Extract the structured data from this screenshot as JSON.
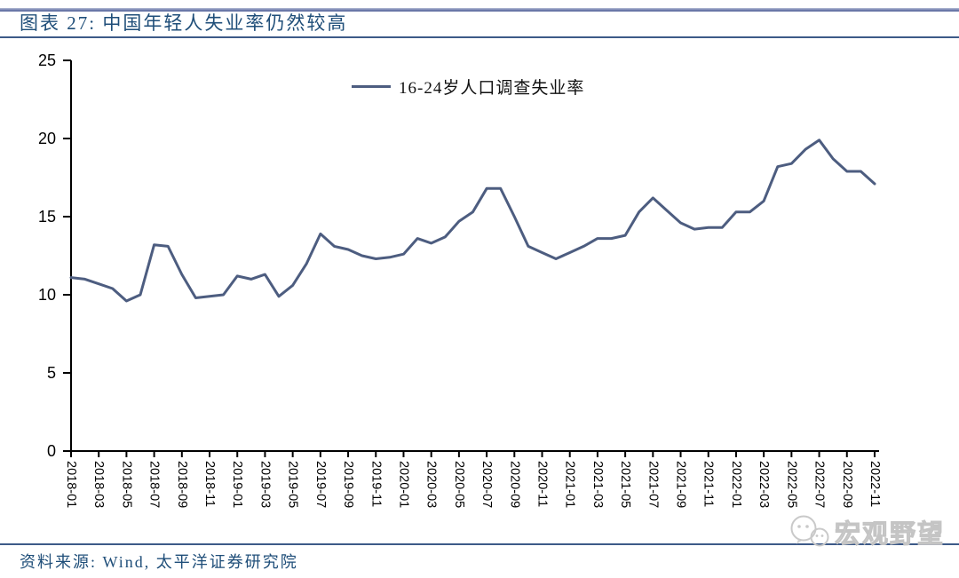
{
  "header": {
    "title": "图表 27: 中国年轻人失业率仍然较高"
  },
  "chart_data": {
    "type": "line",
    "title": "图表 27: 中国年轻人失业率仍然较高",
    "xlabel": "",
    "ylabel": "",
    "ylim": [
      0,
      25
    ],
    "yticks": [
      0,
      5,
      10,
      15,
      20,
      25
    ],
    "grid": false,
    "legend_position": "top-center",
    "x_tick_every": 2,
    "x": [
      "2018-01",
      "2018-02",
      "2018-03",
      "2018-04",
      "2018-05",
      "2018-06",
      "2018-07",
      "2018-08",
      "2018-09",
      "2018-10",
      "2018-11",
      "2018-12",
      "2019-01",
      "2019-02",
      "2019-03",
      "2019-04",
      "2019-05",
      "2019-06",
      "2019-07",
      "2019-08",
      "2019-09",
      "2019-10",
      "2019-11",
      "2019-12",
      "2020-01",
      "2020-02",
      "2020-03",
      "2020-04",
      "2020-05",
      "2020-06",
      "2020-07",
      "2020-08",
      "2020-09",
      "2020-10",
      "2020-11",
      "2020-12",
      "2021-01",
      "2021-02",
      "2021-03",
      "2021-04",
      "2021-05",
      "2021-06",
      "2021-07",
      "2021-08",
      "2021-09",
      "2021-10",
      "2021-11",
      "2021-12",
      "2022-01",
      "2022-02",
      "2022-03",
      "2022-04",
      "2022-05",
      "2022-06",
      "2022-07",
      "2022-08",
      "2022-09",
      "2022-10",
      "2022-11"
    ],
    "series": [
      {
        "name": "16-24岁人口调查失业率",
        "color": "#4D5D80",
        "values": [
          11.1,
          11.0,
          10.7,
          10.4,
          9.6,
          10.0,
          13.2,
          13.1,
          11.3,
          9.8,
          9.9,
          10.0,
          11.2,
          11.0,
          11.3,
          9.9,
          10.6,
          12.0,
          13.9,
          13.1,
          12.9,
          12.5,
          12.3,
          12.4,
          12.6,
          13.6,
          13.3,
          13.7,
          14.7,
          15.3,
          16.8,
          16.8,
          15.0,
          13.1,
          12.7,
          12.3,
          12.7,
          13.1,
          13.6,
          13.6,
          13.8,
          15.3,
          16.2,
          15.4,
          14.6,
          14.2,
          14.3,
          14.3,
          15.3,
          15.3,
          16.0,
          18.2,
          18.4,
          19.3,
          19.9,
          18.7,
          17.9,
          17.9,
          17.1
        ]
      }
    ]
  },
  "footer": {
    "source": "资料来源: Wind, 太平洋证券研究院"
  },
  "watermark": {
    "text": "宏观野望",
    "icon": "wechat-icon"
  },
  "colors": {
    "title_blue": "#1F4E79",
    "rule_blue": "#3D5A88",
    "line_color": "#4D5D80",
    "axis_black": "#000000",
    "watermark_gray": "#C4C4C4"
  }
}
